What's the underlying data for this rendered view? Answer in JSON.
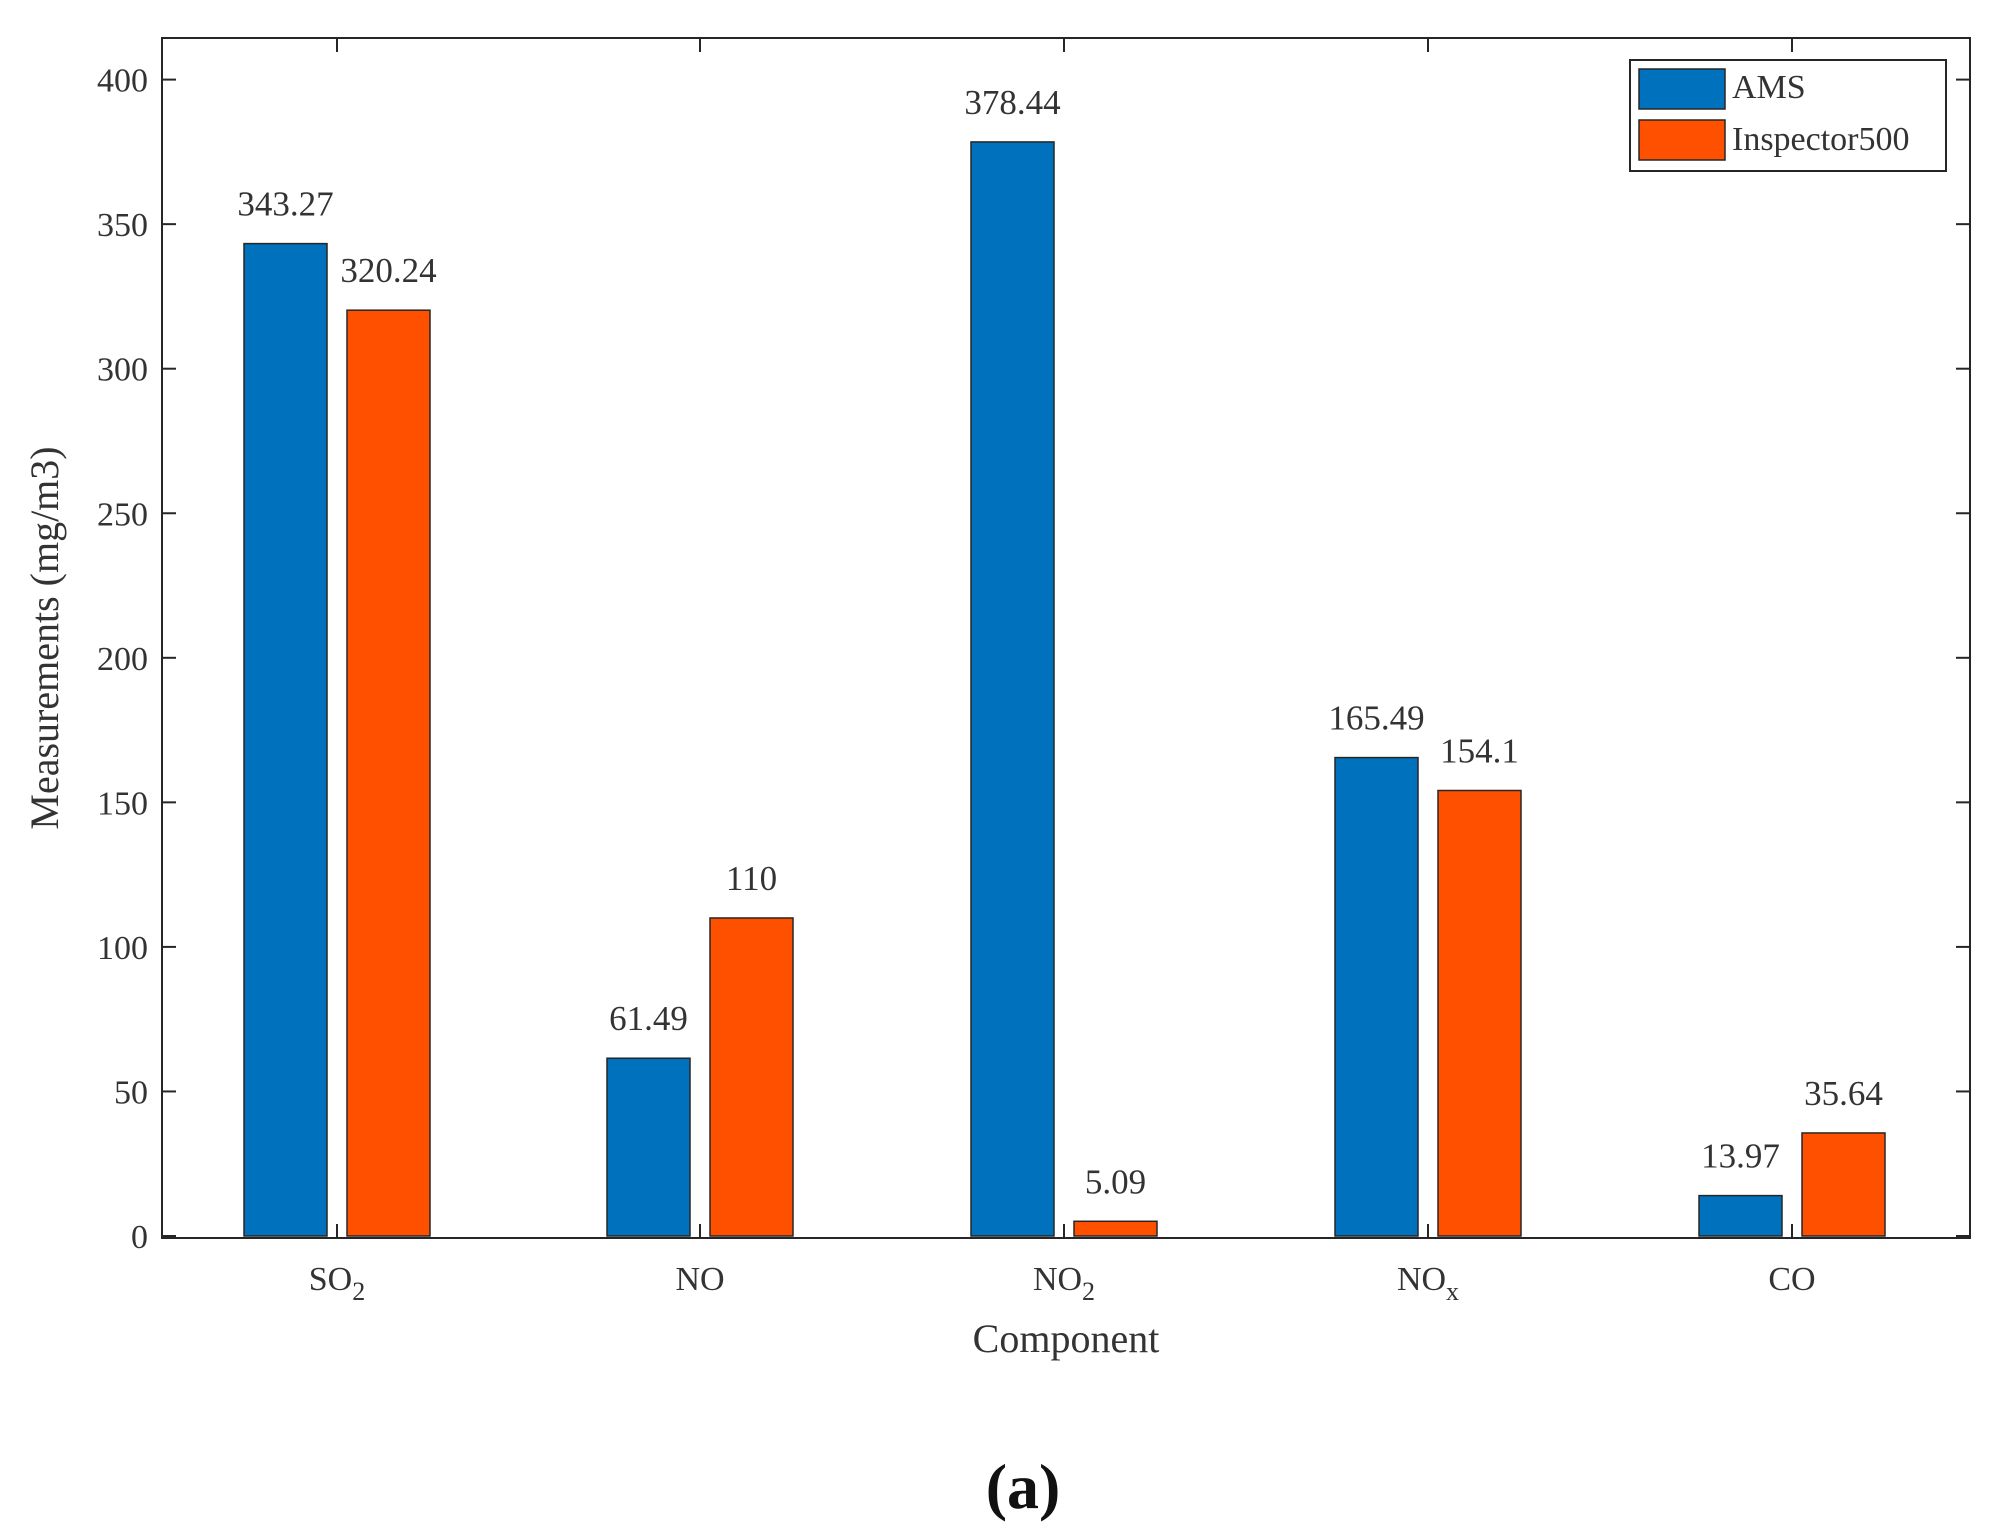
{
  "chart_data": {
    "type": "bar",
    "categories": [
      {
        "base": "SO",
        "sub": "2"
      },
      {
        "base": "NO",
        "sub": ""
      },
      {
        "base": "NO",
        "sub": "2"
      },
      {
        "base": "NO",
        "sub": "x"
      },
      {
        "base": "CO",
        "sub": ""
      }
    ],
    "series": [
      {
        "name": "AMS",
        "color": "#0072BD",
        "values": [
          343.27,
          61.49,
          378.44,
          165.49,
          13.97
        ],
        "labels": [
          "343.27",
          "61.49",
          "378.44",
          "165.49",
          "13.97"
        ]
      },
      {
        "name": "Inspector500",
        "color": "#FF5000",
        "values": [
          320.24,
          110,
          5.09,
          154.1,
          35.64
        ],
        "labels": [
          "320.24",
          "110",
          "5.09",
          "154.1",
          "35.64"
        ]
      }
    ],
    "xlabel": "Component",
    "ylabel": "Measurements (mg/m3)",
    "ylim": [
      0,
      415
    ],
    "yticks": [
      0,
      50,
      100,
      150,
      200,
      250,
      300,
      350,
      400
    ],
    "legend_position": "top-right",
    "grid": false
  },
  "panel_label": "(a)"
}
